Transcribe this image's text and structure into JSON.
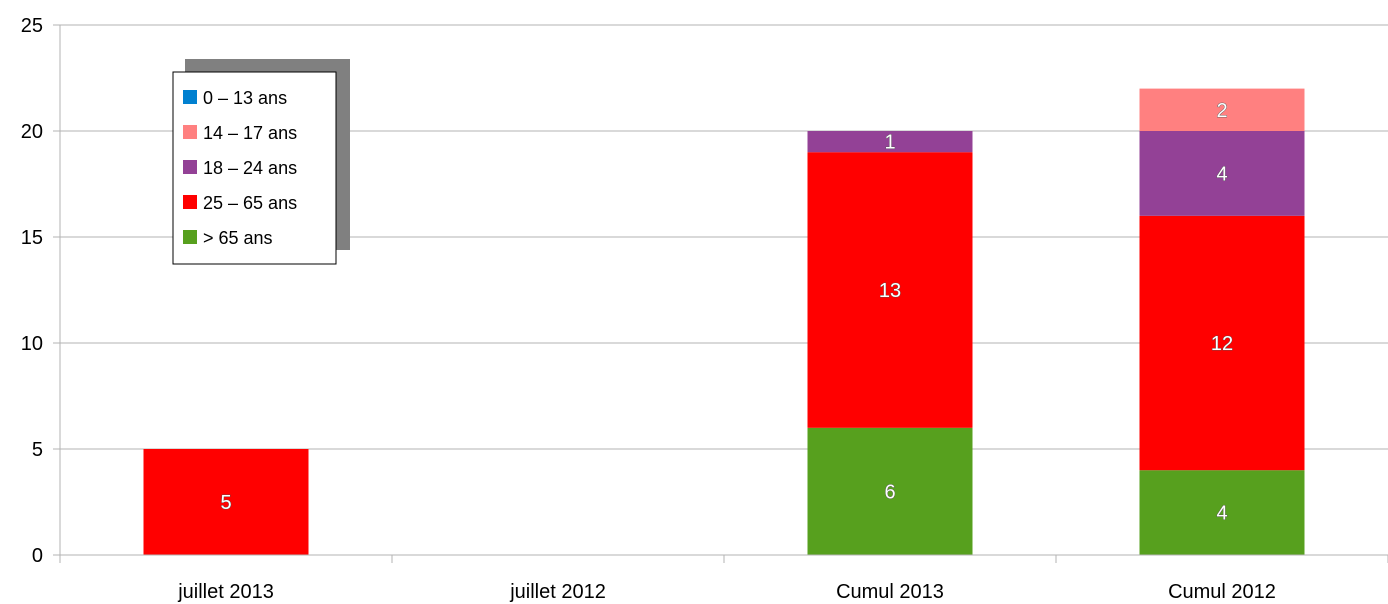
{
  "chart_data": {
    "type": "bar",
    "stacked": true,
    "categories": [
      "juillet 2013",
      "juillet 2012",
      "Cumul 2013",
      "Cumul 2012"
    ],
    "series": [
      {
        "name": "> 65 ans",
        "color": "#57a01e",
        "values": [
          0,
          0,
          6,
          4
        ]
      },
      {
        "name": "25 – 65 ans",
        "color": "#ff0000",
        "values": [
          5,
          0,
          13,
          12
        ]
      },
      {
        "name": "18 – 24 ans",
        "color": "#934196",
        "values": [
          0,
          0,
          1,
          4
        ]
      },
      {
        "name": "14 – 17 ans",
        "color": "#ff8080",
        "values": [
          0,
          0,
          0,
          2
        ]
      },
      {
        "name": "0 – 13 ans",
        "color": "#0080d0",
        "values": [
          0,
          0,
          0,
          0
        ]
      }
    ],
    "legend_order": [
      "0 – 13 ans",
      "14 – 17 ans",
      "18 – 24 ans",
      "25 – 65 ans",
      "> 65 ans"
    ],
    "ylim": [
      0,
      25
    ],
    "yticks": [
      0,
      5,
      10,
      15,
      20,
      25
    ],
    "grid": true,
    "legend_position": "top-left",
    "title": "",
    "xlabel": "",
    "ylabel": ""
  }
}
